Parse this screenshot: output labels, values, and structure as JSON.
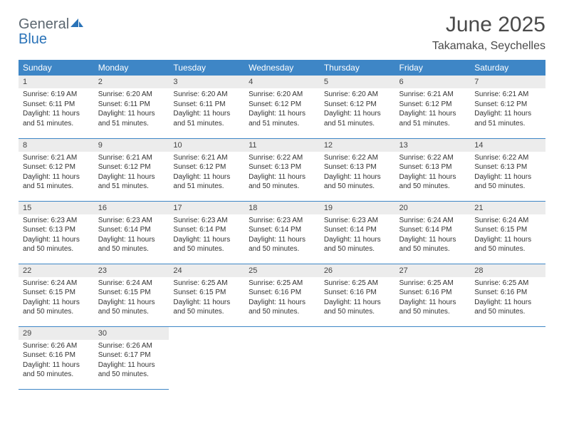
{
  "logo": {
    "part1": "General",
    "part2": "Blue"
  },
  "title": "June 2025",
  "subtitle": "Takamaka, Seychelles",
  "colors": {
    "header_bg": "#3e86c6",
    "header_text": "#ffffff",
    "daynum_bg": "#ececec",
    "cell_border": "#3e86c6",
    "logo_gray": "#5c6770",
    "logo_blue": "#2a73b8",
    "page_bg": "#ffffff",
    "text": "#333333"
  },
  "weekdays": [
    "Sunday",
    "Monday",
    "Tuesday",
    "Wednesday",
    "Thursday",
    "Friday",
    "Saturday"
  ],
  "weeks": [
    [
      {
        "n": "1",
        "sr": "Sunrise: 6:19 AM",
        "ss": "Sunset: 6:11 PM",
        "d1": "Daylight: 11 hours",
        "d2": "and 51 minutes."
      },
      {
        "n": "2",
        "sr": "Sunrise: 6:20 AM",
        "ss": "Sunset: 6:11 PM",
        "d1": "Daylight: 11 hours",
        "d2": "and 51 minutes."
      },
      {
        "n": "3",
        "sr": "Sunrise: 6:20 AM",
        "ss": "Sunset: 6:11 PM",
        "d1": "Daylight: 11 hours",
        "d2": "and 51 minutes."
      },
      {
        "n": "4",
        "sr": "Sunrise: 6:20 AM",
        "ss": "Sunset: 6:12 PM",
        "d1": "Daylight: 11 hours",
        "d2": "and 51 minutes."
      },
      {
        "n": "5",
        "sr": "Sunrise: 6:20 AM",
        "ss": "Sunset: 6:12 PM",
        "d1": "Daylight: 11 hours",
        "d2": "and 51 minutes."
      },
      {
        "n": "6",
        "sr": "Sunrise: 6:21 AM",
        "ss": "Sunset: 6:12 PM",
        "d1": "Daylight: 11 hours",
        "d2": "and 51 minutes."
      },
      {
        "n": "7",
        "sr": "Sunrise: 6:21 AM",
        "ss": "Sunset: 6:12 PM",
        "d1": "Daylight: 11 hours",
        "d2": "and 51 minutes."
      }
    ],
    [
      {
        "n": "8",
        "sr": "Sunrise: 6:21 AM",
        "ss": "Sunset: 6:12 PM",
        "d1": "Daylight: 11 hours",
        "d2": "and 51 minutes."
      },
      {
        "n": "9",
        "sr": "Sunrise: 6:21 AM",
        "ss": "Sunset: 6:12 PM",
        "d1": "Daylight: 11 hours",
        "d2": "and 51 minutes."
      },
      {
        "n": "10",
        "sr": "Sunrise: 6:21 AM",
        "ss": "Sunset: 6:12 PM",
        "d1": "Daylight: 11 hours",
        "d2": "and 51 minutes."
      },
      {
        "n": "11",
        "sr": "Sunrise: 6:22 AM",
        "ss": "Sunset: 6:13 PM",
        "d1": "Daylight: 11 hours",
        "d2": "and 50 minutes."
      },
      {
        "n": "12",
        "sr": "Sunrise: 6:22 AM",
        "ss": "Sunset: 6:13 PM",
        "d1": "Daylight: 11 hours",
        "d2": "and 50 minutes."
      },
      {
        "n": "13",
        "sr": "Sunrise: 6:22 AM",
        "ss": "Sunset: 6:13 PM",
        "d1": "Daylight: 11 hours",
        "d2": "and 50 minutes."
      },
      {
        "n": "14",
        "sr": "Sunrise: 6:22 AM",
        "ss": "Sunset: 6:13 PM",
        "d1": "Daylight: 11 hours",
        "d2": "and 50 minutes."
      }
    ],
    [
      {
        "n": "15",
        "sr": "Sunrise: 6:23 AM",
        "ss": "Sunset: 6:13 PM",
        "d1": "Daylight: 11 hours",
        "d2": "and 50 minutes."
      },
      {
        "n": "16",
        "sr": "Sunrise: 6:23 AM",
        "ss": "Sunset: 6:14 PM",
        "d1": "Daylight: 11 hours",
        "d2": "and 50 minutes."
      },
      {
        "n": "17",
        "sr": "Sunrise: 6:23 AM",
        "ss": "Sunset: 6:14 PM",
        "d1": "Daylight: 11 hours",
        "d2": "and 50 minutes."
      },
      {
        "n": "18",
        "sr": "Sunrise: 6:23 AM",
        "ss": "Sunset: 6:14 PM",
        "d1": "Daylight: 11 hours",
        "d2": "and 50 minutes."
      },
      {
        "n": "19",
        "sr": "Sunrise: 6:23 AM",
        "ss": "Sunset: 6:14 PM",
        "d1": "Daylight: 11 hours",
        "d2": "and 50 minutes."
      },
      {
        "n": "20",
        "sr": "Sunrise: 6:24 AM",
        "ss": "Sunset: 6:14 PM",
        "d1": "Daylight: 11 hours",
        "d2": "and 50 minutes."
      },
      {
        "n": "21",
        "sr": "Sunrise: 6:24 AM",
        "ss": "Sunset: 6:15 PM",
        "d1": "Daylight: 11 hours",
        "d2": "and 50 minutes."
      }
    ],
    [
      {
        "n": "22",
        "sr": "Sunrise: 6:24 AM",
        "ss": "Sunset: 6:15 PM",
        "d1": "Daylight: 11 hours",
        "d2": "and 50 minutes."
      },
      {
        "n": "23",
        "sr": "Sunrise: 6:24 AM",
        "ss": "Sunset: 6:15 PM",
        "d1": "Daylight: 11 hours",
        "d2": "and 50 minutes."
      },
      {
        "n": "24",
        "sr": "Sunrise: 6:25 AM",
        "ss": "Sunset: 6:15 PM",
        "d1": "Daylight: 11 hours",
        "d2": "and 50 minutes."
      },
      {
        "n": "25",
        "sr": "Sunrise: 6:25 AM",
        "ss": "Sunset: 6:16 PM",
        "d1": "Daylight: 11 hours",
        "d2": "and 50 minutes."
      },
      {
        "n": "26",
        "sr": "Sunrise: 6:25 AM",
        "ss": "Sunset: 6:16 PM",
        "d1": "Daylight: 11 hours",
        "d2": "and 50 minutes."
      },
      {
        "n": "27",
        "sr": "Sunrise: 6:25 AM",
        "ss": "Sunset: 6:16 PM",
        "d1": "Daylight: 11 hours",
        "d2": "and 50 minutes."
      },
      {
        "n": "28",
        "sr": "Sunrise: 6:25 AM",
        "ss": "Sunset: 6:16 PM",
        "d1": "Daylight: 11 hours",
        "d2": "and 50 minutes."
      }
    ],
    [
      {
        "n": "29",
        "sr": "Sunrise: 6:26 AM",
        "ss": "Sunset: 6:16 PM",
        "d1": "Daylight: 11 hours",
        "d2": "and 50 minutes."
      },
      {
        "n": "30",
        "sr": "Sunrise: 6:26 AM",
        "ss": "Sunset: 6:17 PM",
        "d1": "Daylight: 11 hours",
        "d2": "and 50 minutes."
      },
      null,
      null,
      null,
      null,
      null
    ]
  ]
}
